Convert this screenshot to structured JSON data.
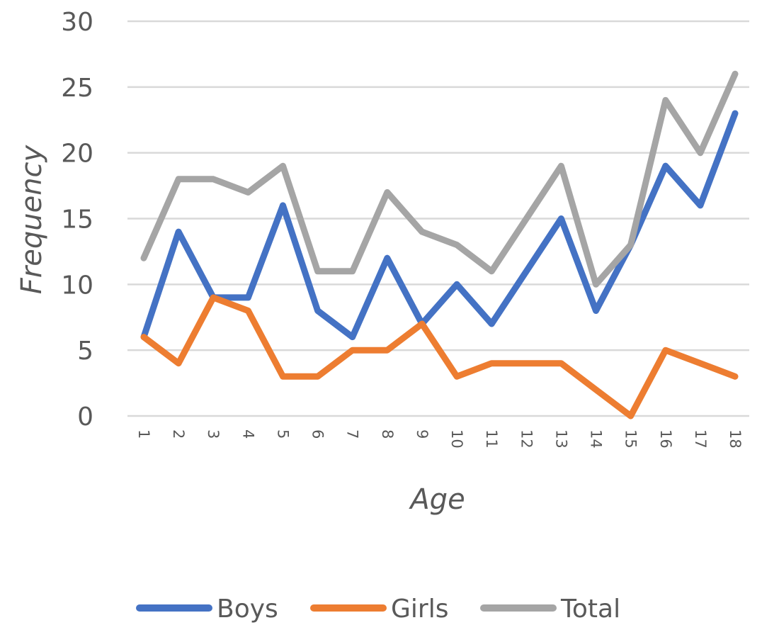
{
  "chart_data": {
    "type": "line",
    "title": "",
    "xlabel": "Age",
    "ylabel": "Frequency",
    "x": [
      "1",
      "2",
      "3",
      "4",
      "5",
      "6",
      "7",
      "8",
      "9",
      "10",
      "11",
      "12",
      "13",
      "14",
      "15",
      "16",
      "17",
      "18"
    ],
    "ylim": [
      0,
      30
    ],
    "yticks": [
      "0",
      "5",
      "10",
      "15",
      "20",
      "25",
      "30"
    ],
    "grid": true,
    "legend_position": "bottom",
    "series": [
      {
        "name": "Boys",
        "color": "#4472C4",
        "values": [
          6,
          14,
          9,
          9,
          16,
          8,
          6,
          12,
          7,
          10,
          7,
          11,
          15,
          8,
          13,
          19,
          16,
          23
        ]
      },
      {
        "name": "Girls",
        "color": "#ED7D31",
        "values": [
          6,
          4,
          9,
          8,
          3,
          3,
          5,
          5,
          7,
          3,
          4,
          4,
          4,
          2,
          0,
          5,
          4,
          3
        ]
      },
      {
        "name": "Total",
        "color": "#A5A5A5",
        "values": [
          12,
          18,
          18,
          17,
          19,
          11,
          11,
          17,
          14,
          13,
          11,
          15,
          19,
          10,
          13,
          24,
          20,
          26
        ]
      }
    ]
  }
}
